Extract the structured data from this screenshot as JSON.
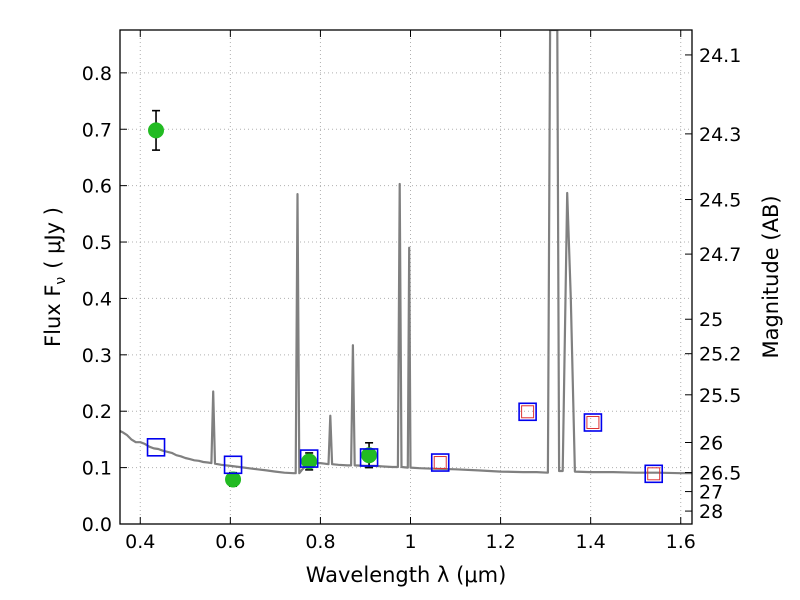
{
  "chart_data": {
    "type": "scatter",
    "xlabel": "Wavelength  λ (μm)",
    "ylabel_left": "Flux  F",
    "ylabel_left_sub": "ν",
    "ylabel_left_units": "( μJy )",
    "ylabel_right": "Magnitude (AB)",
    "xlim": [
      0.355,
      1.625
    ],
    "ylim": [
      0.0,
      0.876
    ],
    "grid": true,
    "x_ticks": [
      0.4,
      0.6,
      0.8,
      1.0,
      1.2,
      1.4,
      1.6
    ],
    "x_tick_labels": [
      "0.4",
      "0.6",
      "0.8",
      "1",
      "1.2",
      "1.4",
      "1.6"
    ],
    "y_ticks": [
      0.0,
      0.1,
      0.2,
      0.3,
      0.4,
      0.5,
      0.6,
      0.7,
      0.8
    ],
    "y_tick_labels": [
      "0.0",
      "0.1",
      "0.2",
      "0.3",
      "0.4",
      "0.5",
      "0.6",
      "0.7",
      "0.8"
    ],
    "right_ticks": [
      {
        "label": "24.1",
        "flux": 0.8318
      },
      {
        "label": "24.3",
        "flux": 0.6918
      },
      {
        "label": "24.5",
        "flux": 0.5754
      },
      {
        "label": "24.7",
        "flux": 0.4786
      },
      {
        "label": "25",
        "flux": 0.3631
      },
      {
        "label": "25.2",
        "flux": 0.302
      },
      {
        "label": "25.5",
        "flux": 0.2291
      },
      {
        "label": "26",
        "flux": 0.1445
      },
      {
        "label": "26.5",
        "flux": 0.0912
      },
      {
        "label": "27",
        "flux": 0.0575
      },
      {
        "label": "28",
        "flux": 0.0229
      }
    ],
    "colors": {
      "spectrum": "#808080",
      "observed": "#22bb22",
      "model_box": "#0000ee",
      "model_inner": "#dd3333",
      "grid": "#b0b0b0"
    },
    "series": [
      {
        "kind": "spectrum",
        "points": [
          [
            0.355,
            0.165
          ],
          [
            0.36,
            0.163
          ],
          [
            0.37,
            0.158
          ],
          [
            0.38,
            0.15
          ],
          [
            0.39,
            0.145
          ],
          [
            0.4,
            0.145
          ],
          [
            0.41,
            0.142
          ],
          [
            0.42,
            0.137
          ],
          [
            0.43,
            0.134
          ],
          [
            0.44,
            0.133
          ],
          [
            0.45,
            0.13
          ],
          [
            0.46,
            0.128
          ],
          [
            0.47,
            0.126
          ],
          [
            0.48,
            0.122
          ],
          [
            0.49,
            0.12
          ],
          [
            0.5,
            0.117
          ],
          [
            0.51,
            0.115
          ],
          [
            0.52,
            0.113
          ],
          [
            0.53,
            0.112
          ],
          [
            0.54,
            0.11
          ],
          [
            0.55,
            0.109
          ],
          [
            0.558,
            0.108
          ],
          [
            0.562,
            0.235
          ],
          [
            0.566,
            0.107
          ],
          [
            0.58,
            0.105
          ],
          [
            0.6,
            0.103
          ],
          [
            0.62,
            0.101
          ],
          [
            0.64,
            0.099
          ],
          [
            0.66,
            0.097
          ],
          [
            0.68,
            0.095
          ],
          [
            0.7,
            0.093
          ],
          [
            0.72,
            0.091
          ],
          [
            0.74,
            0.09
          ],
          [
            0.745,
            0.09
          ],
          [
            0.749,
            0.585
          ],
          [
            0.753,
            0.09
          ],
          [
            0.76,
            0.097
          ],
          [
            0.77,
            0.105
          ],
          [
            0.78,
            0.107
          ],
          [
            0.79,
            0.108
          ],
          [
            0.8,
            0.108
          ],
          [
            0.81,
            0.107
          ],
          [
            0.818,
            0.106
          ],
          [
            0.822,
            0.192
          ],
          [
            0.826,
            0.106
          ],
          [
            0.84,
            0.105
          ],
          [
            0.86,
            0.104
          ],
          [
            0.868,
            0.104
          ],
          [
            0.872,
            0.317
          ],
          [
            0.876,
            0.104
          ],
          [
            0.9,
            0.103
          ],
          [
            0.92,
            0.103
          ],
          [
            0.94,
            0.102
          ],
          [
            0.96,
            0.101
          ],
          [
            0.972,
            0.101
          ],
          [
            0.976,
            0.603
          ],
          [
            0.98,
            0.101
          ],
          [
            0.994,
            0.1
          ],
          [
            0.997,
            0.49
          ],
          [
            1.0,
            0.1
          ],
          [
            1.02,
            0.099
          ],
          [
            1.05,
            0.098
          ],
          [
            1.1,
            0.097
          ],
          [
            1.15,
            0.095
          ],
          [
            1.2,
            0.093
          ],
          [
            1.25,
            0.092
          ],
          [
            1.28,
            0.092
          ],
          [
            1.305,
            0.091
          ],
          [
            1.31,
            0.876
          ],
          [
            1.326,
            0.876
          ],
          [
            1.33,
            0.094
          ],
          [
            1.338,
            0.094
          ],
          [
            1.348,
            0.587
          ],
          [
            1.356,
            0.4
          ],
          [
            1.365,
            0.093
          ],
          [
            1.4,
            0.092
          ],
          [
            1.45,
            0.092
          ],
          [
            1.5,
            0.091
          ],
          [
            1.55,
            0.091
          ],
          [
            1.6,
            0.09
          ],
          [
            1.625,
            0.09
          ]
        ]
      },
      {
        "kind": "observed",
        "points": [
          {
            "x": 0.435,
            "y": 0.698,
            "err": 0.035
          },
          {
            "x": 0.606,
            "y": 0.079,
            "err": 0.012
          },
          {
            "x": 0.775,
            "y": 0.111,
            "err": 0.015
          },
          {
            "x": 0.908,
            "y": 0.122,
            "err": 0.022
          }
        ]
      },
      {
        "kind": "model",
        "points": [
          {
            "x": 0.435,
            "y": 0.136,
            "inner": false
          },
          {
            "x": 0.606,
            "y": 0.105,
            "inner": false
          },
          {
            "x": 0.775,
            "y": 0.116,
            "inner": false
          },
          {
            "x": 0.908,
            "y": 0.118,
            "inner": false
          },
          {
            "x": 1.066,
            "y": 0.109,
            "inner": true
          },
          {
            "x": 1.26,
            "y": 0.199,
            "inner": true
          },
          {
            "x": 1.405,
            "y": 0.18,
            "inner": true
          },
          {
            "x": 1.54,
            "y": 0.089,
            "inner": true
          }
        ]
      }
    ]
  }
}
